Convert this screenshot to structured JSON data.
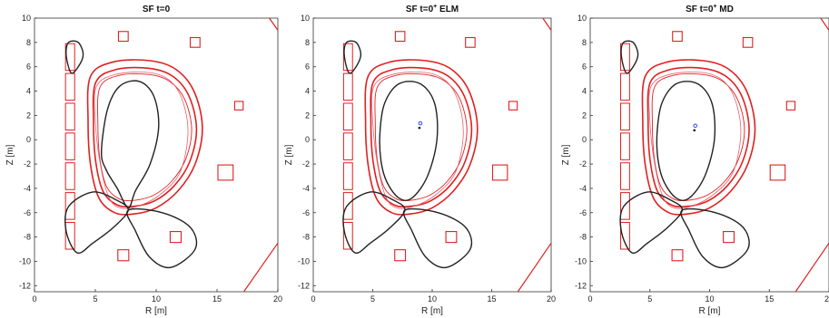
{
  "panels": [
    {
      "title_main": "SF t=0",
      "title_sup": "",
      "title_tail": ""
    },
    {
      "title_main": "SF t=0",
      "title_sup": "+",
      "title_tail": " ELM"
    },
    {
      "title_main": "SF t=0",
      "title_sup": "+",
      "title_tail": " MD"
    }
  ],
  "axes": {
    "xlabel": "R [m]",
    "ylabel": "Z [m]",
    "xticks": [
      "0",
      "5",
      "10",
      "15",
      "20"
    ],
    "yticks": [
      "10",
      "8",
      "6",
      "4",
      "2",
      "0",
      "-2",
      "-4",
      "-6",
      "-8",
      "-10",
      "-12"
    ],
    "xlim": [
      0,
      20
    ],
    "ylim": [
      -12.5,
      10
    ]
  },
  "colors": {
    "coils": "#e02020",
    "vessel": "#e02020",
    "separatrix": "#222222",
    "axis_marker_blue": "#3050d0"
  },
  "markers": [
    {
      "panel": 1,
      "r": 9.0,
      "z": 1.2
    },
    {
      "panel": 2,
      "r": 8.8,
      "z": 1.0
    }
  ]
}
